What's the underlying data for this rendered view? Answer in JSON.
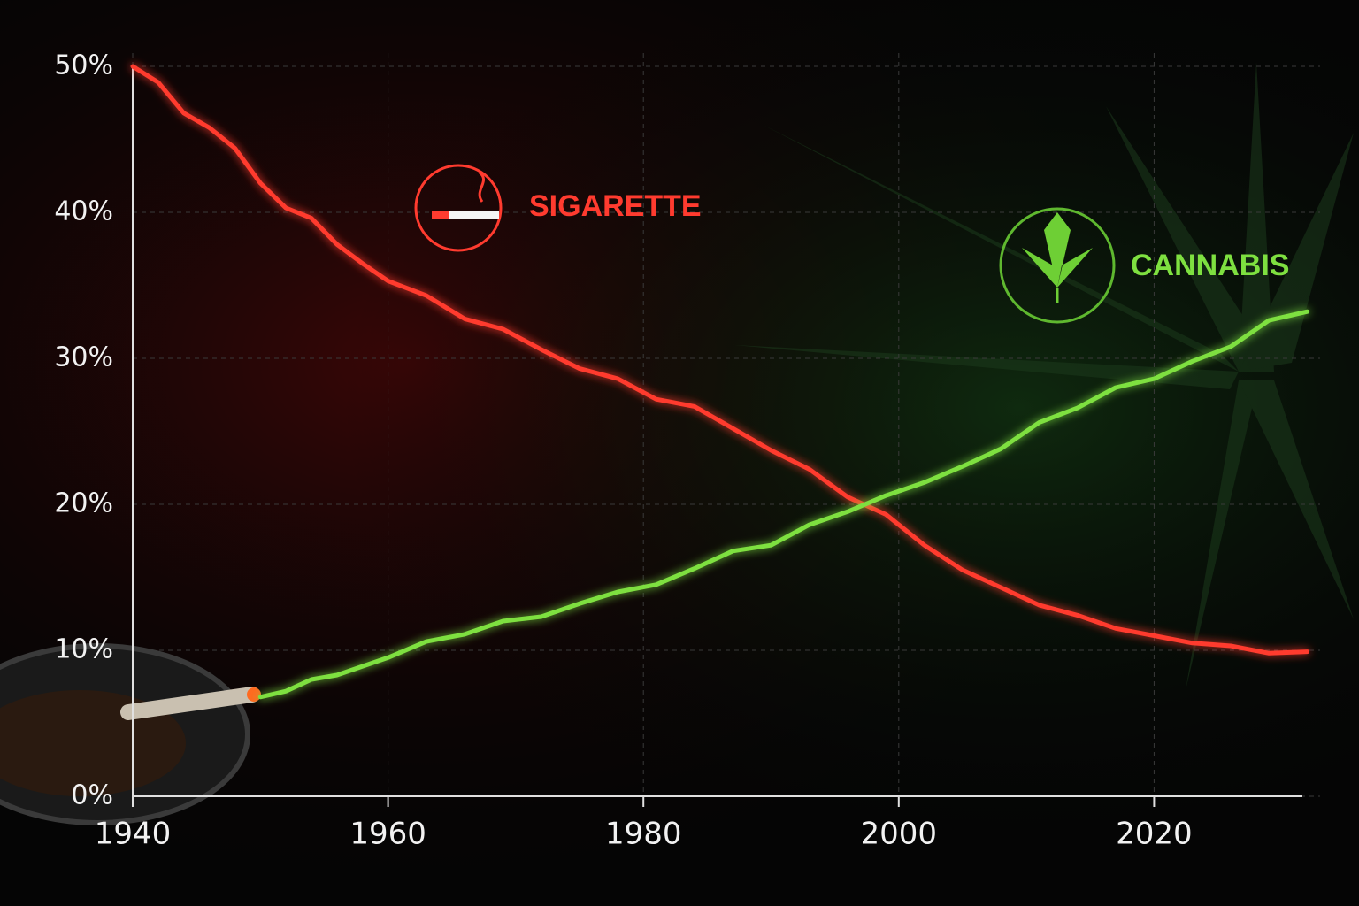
{
  "chart_data": {
    "type": "line",
    "x": [
      1940,
      1942,
      1944,
      1946,
      1948,
      1950,
      1952,
      1954,
      1956,
      1958,
      1960,
      1963,
      1966,
      1969,
      1972,
      1975,
      1978,
      1981,
      1984,
      1987,
      1990,
      1993,
      1996,
      1999,
      2002,
      2005,
      2008,
      2011,
      2014,
      2017,
      2020,
      2023,
      2026,
      2029,
      2032
    ],
    "series": [
      {
        "name": "SIGARETTE",
        "color": "#ff3b2f",
        "values": [
          50,
          48.9,
          46.8,
          45.8,
          44.4,
          42,
          40.3,
          39.6,
          37.8,
          36.5,
          35.3,
          34.3,
          32.7,
          32,
          30.6,
          29.3,
          28.6,
          27.2,
          26.7,
          25.2,
          23.7,
          22.4,
          20.5,
          19.3,
          17.2,
          15.5,
          14.3,
          13.1,
          12.4,
          11.5,
          11,
          10.5,
          10.3,
          9.8,
          9.9
        ]
      },
      {
        "name": "CANNABIS",
        "color": "#7ee040",
        "values": [
          null,
          null,
          null,
          null,
          null,
          6.8,
          7.2,
          8,
          8.3,
          8.9,
          9.5,
          10.6,
          11.1,
          12,
          12.3,
          13.2,
          14,
          14.5,
          15.6,
          16.8,
          17.2,
          18.6,
          19.5,
          20.6,
          21.5,
          22.6,
          23.8,
          25.6,
          26.6,
          28,
          28.6,
          29.8,
          30.8,
          32.6,
          33.2
        ]
      }
    ],
    "xlim": [
      1940,
      2033
    ],
    "xticks": [
      1940,
      1960,
      1980,
      2000,
      2020
    ],
    "ylim": [
      0,
      50
    ],
    "yticks": [
      {
        "value": 0,
        "label": "0%"
      },
      {
        "value": 10,
        "label": "10%"
      },
      {
        "value": 20,
        "label": "20%"
      },
      {
        "value": 30,
        "label": "30%"
      },
      {
        "value": 40,
        "label": "40%"
      },
      {
        "value": 50,
        "label": "50%"
      }
    ],
    "grid": true
  }
}
